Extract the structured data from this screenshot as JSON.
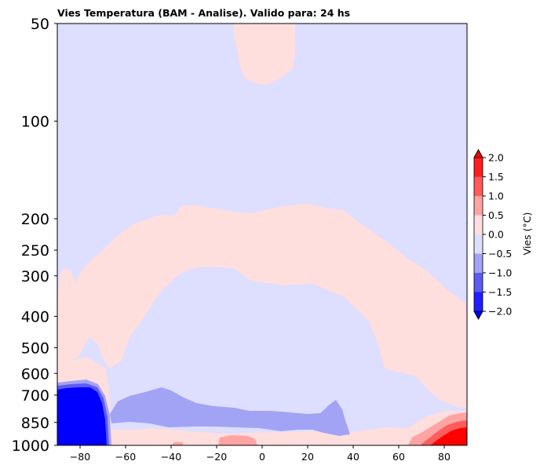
{
  "chart_data": {
    "type": "heatmap",
    "title": "Vies Temperatura (BAM - Analise). Valido para: 24 hs",
    "xlabel": "",
    "ylabel": "",
    "xlim": [
      -90,
      90
    ],
    "ylim": [
      1000,
      50
    ],
    "y_scale": "log",
    "x_ticks": [
      -80,
      -60,
      -40,
      -20,
      0,
      20,
      40,
      60,
      80
    ],
    "x_tick_labels": [
      "−80",
      "−60",
      "−40",
      "−20",
      "0",
      "20",
      "40",
      "60",
      "80"
    ],
    "y_ticks": [
      50,
      100,
      200,
      250,
      300,
      400,
      500,
      600,
      700,
      850,
      1000
    ],
    "y_tick_labels": [
      "50",
      "100",
      "200",
      "250",
      "300",
      "400",
      "500",
      "600",
      "700",
      "850",
      "1000"
    ],
    "grid": false,
    "colorbar": {
      "label": "Vies (°C)",
      "position": "right",
      "extend": "both",
      "levels": [
        -2.0,
        -1.5,
        -1.0,
        -0.5,
        0.0,
        0.5,
        1.0,
        1.5,
        2.0
      ],
      "tick_labels": [
        "−2.0",
        "−1.5",
        "−1.0",
        "−0.5",
        "0.0",
        "0.5",
        "1.0",
        "1.5",
        "2.0"
      ],
      "colors": [
        "#0000ff",
        "#1e1eff",
        "#5c5cf0",
        "#a3a3f5",
        "#dedeff",
        "#ffdede",
        "#ffa3a3",
        "#ff5c5c",
        "#ff1e1e",
        "#ff0000"
      ],
      "under_color": "#0000ff",
      "over_color": "#ff0000"
    },
    "regions": [
      {
        "name": "stratosphere-equatorial",
        "value": 0.25,
        "lat": [
          -13,
          15
        ],
        "plev": [
          50,
          78
        ]
      },
      {
        "name": "upper-troposphere-warm-band",
        "value": 0.25,
        "lat": [
          -90,
          90
        ],
        "plev": [
          190,
          400
        ]
      },
      {
        "name": "southern-polar-cold-core",
        "value": -2.0,
        "lat": [
          -90,
          -67
        ],
        "plev": [
          650,
          1000
        ]
      },
      {
        "name": "midlatitude-lower-cold-band",
        "value": -0.75,
        "lat": [
          -66,
          40
        ],
        "plev": [
          690,
          860
        ]
      },
      {
        "name": "northern-polar-warm-core",
        "value": 1.75,
        "lat": [
          70,
          90
        ],
        "plev": [
          830,
          1000
        ]
      },
      {
        "name": "near-surface-warm-spot",
        "value": 0.75,
        "lat": [
          -18,
          5
        ],
        "plev": [
          940,
          1000
        ]
      }
    ]
  }
}
